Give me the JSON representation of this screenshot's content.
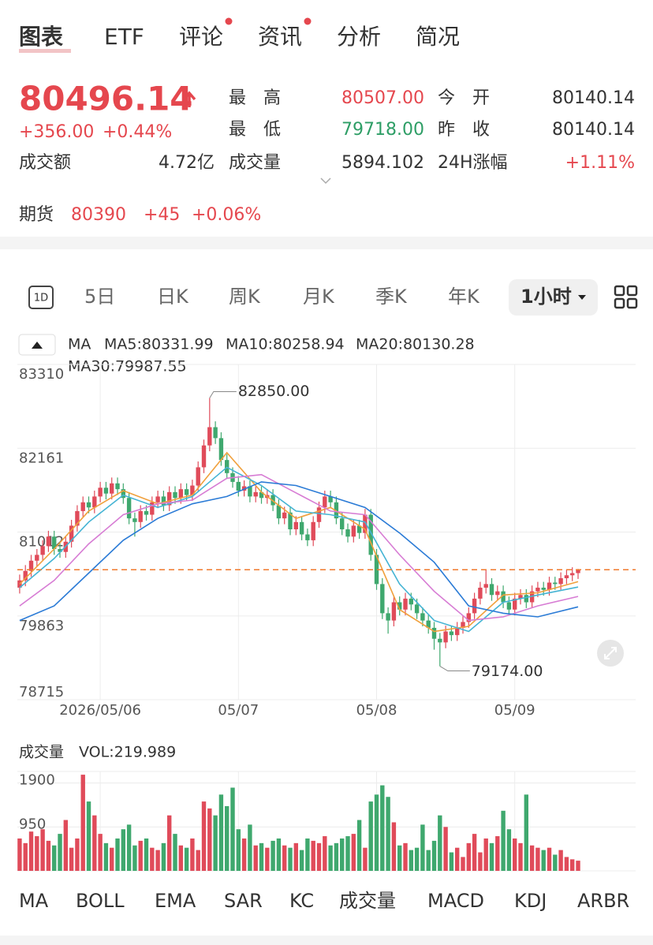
{
  "tabs": [
    "图表",
    "ETF",
    "评论",
    "资讯",
    "分析",
    "简况"
  ],
  "quote": {
    "price": "80496.14",
    "change": "+356.00",
    "change_pct": "+0.44%",
    "turnover_label": "成交额",
    "turnover": "4.72亿",
    "stats": [
      [
        "最　高",
        "80507.00",
        "今　开",
        "80140.14"
      ],
      [
        "最　低",
        "79718.00",
        "昨　收",
        "80140.14"
      ],
      [
        "成交量",
        "5894.102",
        "24H涨幅",
        "+1.11%"
      ]
    ],
    "futures": [
      "期货",
      "80390",
      "+45",
      "+0.06%"
    ]
  },
  "periods": [
    "1D",
    "5日",
    "日K",
    "周K",
    "月K",
    "季K",
    "年K",
    "1小时"
  ],
  "indicators": [
    "MA",
    "BOLL",
    "EMA",
    "SAR",
    "KC",
    "成交量",
    "MACD",
    "KDJ",
    "ARBR"
  ],
  "chart_data": [
    {
      "type": "candlestick",
      "legend_title": "MA",
      "up_color": "#e04b5a",
      "down_color": "#3fa86e",
      "grid": true,
      "ylim": [
        78715,
        83310
      ],
      "yticks": [
        83310,
        82161,
        81012,
        79863,
        78715
      ],
      "xlim": [
        -0.4,
        107
      ],
      "xticks": [
        {
          "value": 14,
          "label": "2026/05/06"
        },
        {
          "value": 38,
          "label": "05/07"
        },
        {
          "value": 62,
          "label": "05/08"
        },
        {
          "value": 86,
          "label": "05/09"
        }
      ],
      "high_label": "82850.00",
      "low_label": "79174.00",
      "open": [
        80250,
        80350,
        80480,
        80620,
        80700,
        80820,
        80950,
        80780,
        80740,
        80880,
        81100,
        81300,
        81420,
        81350,
        81500,
        81620,
        81540,
        81680,
        81600,
        81480,
        81200,
        81150,
        81300,
        81250,
        81420,
        81500,
        81380,
        81560,
        81480,
        81600,
        81520,
        81650,
        81900,
        82200,
        82450,
        82300,
        82000,
        81820,
        81700,
        81580,
        81640,
        81500,
        81560,
        81480,
        81520,
        81380,
        81200,
        81280,
        81050,
        81150,
        80980,
        80900,
        81150,
        81350,
        81500,
        81420,
        81200,
        81050,
        80950,
        81100,
        81000,
        81250,
        80700,
        80300,
        79900,
        79800,
        80050,
        79950,
        80100,
        80020,
        79900,
        79800,
        79700,
        79550,
        79500,
        79650,
        79600,
        79700,
        79780,
        79900,
        80100,
        80250,
        80300,
        80150,
        80200,
        80050,
        79950,
        80100,
        80150,
        80050,
        80200,
        80250,
        80220,
        80320,
        80300,
        80380,
        80420,
        80450
      ],
      "high": [
        80430,
        80560,
        80700,
        80780,
        80900,
        81030,
        81030,
        80860,
        80960,
        81180,
        81380,
        81500,
        81500,
        81580,
        81700,
        81700,
        81760,
        81760,
        81680,
        81560,
        81280,
        81380,
        81380,
        81500,
        81580,
        81580,
        81640,
        81640,
        81680,
        81680,
        81730,
        81980,
        82280,
        82850,
        82530,
        82380,
        82080,
        81900,
        81780,
        81720,
        81720,
        81640,
        81640,
        81600,
        81600,
        81460,
        81360,
        81360,
        81230,
        81230,
        81060,
        81230,
        81430,
        81580,
        81580,
        81500,
        81280,
        81130,
        81180,
        81180,
        81330,
        81330,
        80780,
        80380,
        79980,
        80130,
        80130,
        80180,
        80180,
        80100,
        79980,
        79880,
        79780,
        79630,
        79730,
        79730,
        79780,
        79860,
        79980,
        80180,
        80330,
        80500,
        80380,
        80280,
        80280,
        80130,
        80180,
        80230,
        80230,
        80280,
        80330,
        80330,
        80400,
        80400,
        80460,
        80500,
        80530,
        80507
      ],
      "low": [
        80170,
        80270,
        80400,
        80540,
        80620,
        80740,
        80700,
        80660,
        80660,
        80800,
        81020,
        81220,
        81270,
        81270,
        81420,
        81460,
        81460,
        81520,
        81400,
        81120,
        80950,
        81070,
        81170,
        81170,
        81340,
        81300,
        81300,
        81400,
        81400,
        81440,
        81440,
        81570,
        81820,
        82120,
        82220,
        81920,
        81740,
        81620,
        81500,
        81500,
        81420,
        81420,
        81400,
        81400,
        81300,
        81120,
        81120,
        80970,
        80970,
        80900,
        80820,
        80820,
        81070,
        81270,
        81340,
        81120,
        80970,
        80870,
        80870,
        80920,
        80920,
        80620,
        80220,
        79820,
        79620,
        79720,
        79870,
        79870,
        79940,
        79820,
        79720,
        79620,
        79400,
        79174,
        79420,
        79520,
        79520,
        79620,
        79700,
        79820,
        80020,
        80170,
        80070,
        80070,
        79970,
        79870,
        79870,
        80020,
        79970,
        79970,
        80120,
        80140,
        80140,
        80220,
        80220,
        80300,
        80340,
        80370
      ],
      "close": [
        80350,
        80480,
        80620,
        80700,
        80820,
        80950,
        80780,
        80740,
        80880,
        81100,
        81300,
        81420,
        81350,
        81500,
        81620,
        81540,
        81680,
        81600,
        81480,
        81200,
        81150,
        81300,
        81250,
        81420,
        81500,
        81380,
        81560,
        81480,
        81600,
        81520,
        81650,
        81900,
        82200,
        82450,
        82300,
        82000,
        81820,
        81700,
        81580,
        81640,
        81500,
        81560,
        81480,
        81520,
        81380,
        81200,
        81280,
        81050,
        81150,
        80980,
        80900,
        81150,
        81350,
        81500,
        81420,
        81200,
        81050,
        80950,
        81100,
        81000,
        81250,
        80700,
        80300,
        79900,
        79800,
        80050,
        79950,
        80100,
        80020,
        79900,
        79800,
        79700,
        79550,
        79500,
        79650,
        79600,
        79700,
        79780,
        79900,
        80100,
        80250,
        80300,
        80150,
        80200,
        80050,
        79950,
        80100,
        80150,
        80050,
        80200,
        80250,
        80220,
        80320,
        80300,
        80380,
        80420,
        80450,
        80496.14
      ],
      "ma_x": [
        0,
        6,
        12,
        18,
        24,
        30,
        36,
        42,
        48,
        54,
        60,
        66,
        72,
        78,
        84,
        90,
        97
      ],
      "series": [
        {
          "name": "MA5",
          "label": "MA5:80331.99",
          "color": "#f0a03c",
          "values": [
            80300,
            80780,
            81300,
            81580,
            81400,
            81520,
            82100,
            81560,
            81200,
            81350,
            81050,
            79950,
            79650,
            79720,
            80150,
            80180,
            80331.99
          ]
        },
        {
          "name": "MA10",
          "label": "MA10:80258.94",
          "color": "#45b4d4",
          "values": [
            80250,
            80650,
            81150,
            81520,
            81350,
            81500,
            81900,
            81650,
            81300,
            81250,
            81150,
            80300,
            79800,
            79650,
            80050,
            80150,
            80258.94
          ]
        },
        {
          "name": "MA20",
          "label": "MA20:80130.28",
          "color": "#d77cd4",
          "values": [
            80000,
            80350,
            80850,
            81250,
            81400,
            81450,
            81750,
            81800,
            81550,
            81300,
            81250,
            80700,
            80200,
            79800,
            79850,
            80000,
            80130.28
          ]
        },
        {
          "name": "MA30",
          "label": "MA30:79987.55",
          "color": "#2b7bd6",
          "values": [
            79800,
            80000,
            80450,
            80900,
            81200,
            81400,
            81500,
            81700,
            81650,
            81500,
            81350,
            81000,
            80600,
            80000,
            79900,
            79850,
            79987.55
          ]
        }
      ]
    },
    {
      "type": "bar",
      "title": "成交量",
      "label": "VOL:219.989",
      "ylim": [
        0,
        2150
      ],
      "yticks": [
        1900,
        950
      ],
      "grid": true,
      "values": [
        700,
        600,
        850,
        750,
        900,
        650,
        550,
        800,
        1100,
        500,
        700,
        2080,
        1500,
        1200,
        800,
        600,
        500,
        700,
        900,
        1000,
        550,
        650,
        700,
        500,
        450,
        600,
        1200,
        800,
        550,
        500,
        700,
        450,
        1500,
        1350,
        1200,
        1650,
        1400,
        1800,
        900,
        700,
        1000,
        550,
        600,
        500,
        650,
        700,
        550,
        500,
        600,
        450,
        700,
        650,
        600,
        750,
        550,
        600,
        700,
        750,
        800,
        1100,
        500,
        1500,
        1650,
        1850,
        1600,
        1050,
        550,
        600,
        450,
        500,
        1000,
        450,
        650,
        1200,
        950,
        400,
        500,
        300,
        600,
        800,
        400,
        700,
        600,
        750,
        1300,
        900,
        700,
        600,
        1650,
        550,
        500,
        450,
        500,
        350,
        450,
        300,
        250,
        219.989
      ]
    }
  ]
}
